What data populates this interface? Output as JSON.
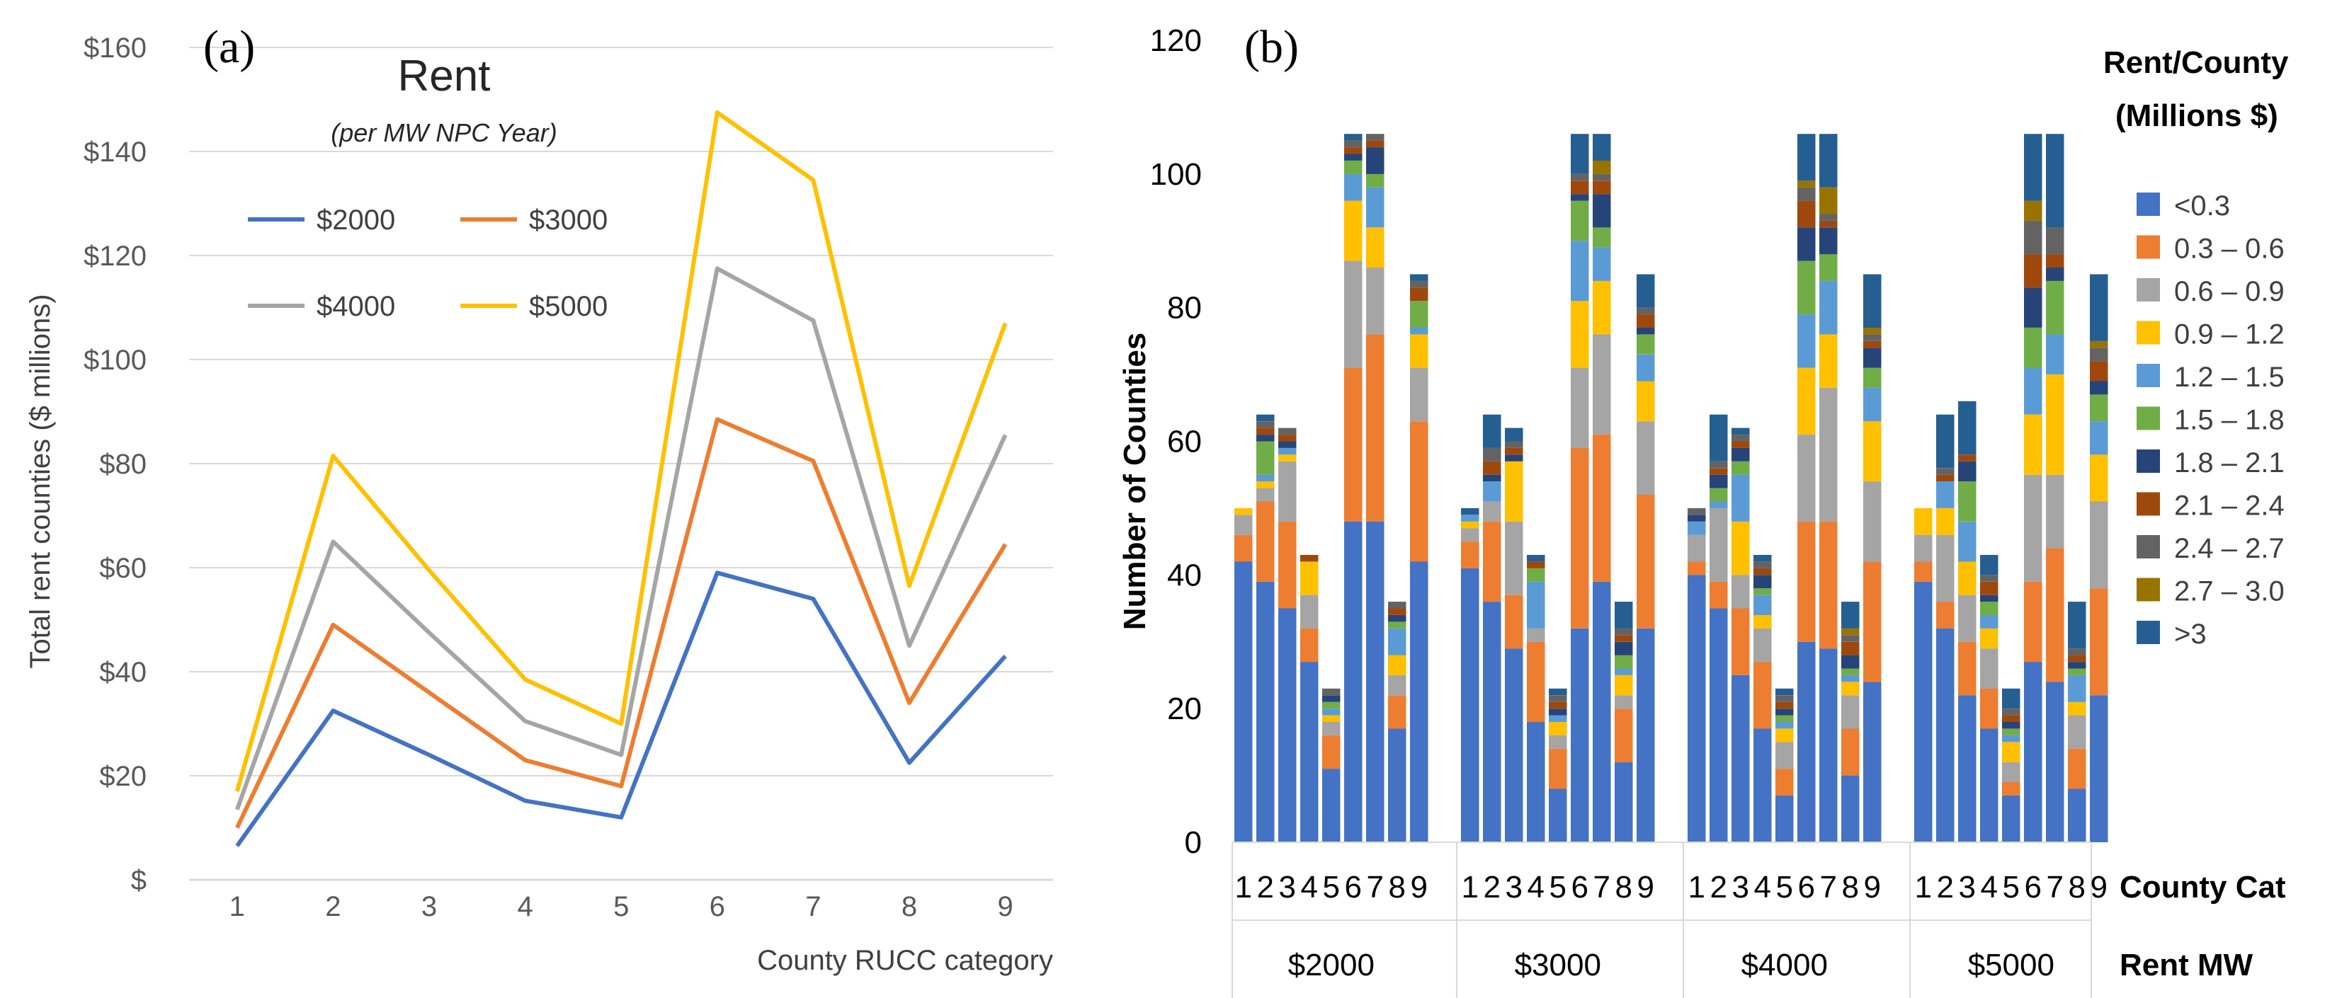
{
  "chart_data": [
    {
      "type": "line",
      "panel_label": "(a)",
      "title": "Rent",
      "subtitle": "(per MW NPC Year)",
      "xlabel": "County RUCC category",
      "ylabel": "Total rent counties ($ millions)",
      "x": [
        1,
        2,
        3,
        4,
        5,
        6,
        7,
        8,
        9
      ],
      "ylim": [
        0,
        160
      ],
      "yticks": [
        0,
        20,
        40,
        60,
        80,
        100,
        120,
        140,
        160
      ],
      "ytick_labels": [
        "$",
        "$20",
        "$40",
        "$60",
        "$80",
        "$100",
        "$120",
        "$140",
        "$160"
      ],
      "grid": true,
      "legend_position": "top-left, inside",
      "series": [
        {
          "name": "$2000",
          "color": "#4472C4",
          "values": [
            6.5,
            32.5,
            24,
            15.2,
            12,
            59,
            54,
            22.5,
            43
          ]
        },
        {
          "name": "$3000",
          "color": "#ED7D31",
          "values": [
            10,
            49,
            36,
            23,
            18,
            88.5,
            80.5,
            34,
            64.5
          ]
        },
        {
          "name": "$4000",
          "color": "#A5A5A5",
          "values": [
            13.5,
            65,
            47.5,
            30.5,
            24,
            117.5,
            107.5,
            45,
            85.5
          ]
        },
        {
          "name": "$5000",
          "color": "#FFC000",
          "values": [
            17,
            81.5,
            59.5,
            38.5,
            30,
            147.5,
            134.5,
            56.5,
            107
          ]
        }
      ]
    },
    {
      "type": "bar",
      "stacked": true,
      "panel_label": "(b)",
      "ylabel": "Number of Counties",
      "ylim": [
        0,
        120
      ],
      "yticks": [
        0,
        20,
        40,
        60,
        80,
        100,
        120
      ],
      "grid": false,
      "legend_title_line1": "Rent/County",
      "legend_title_line2": "(Millions $)",
      "legend_position": "right",
      "x_row1_name": "County Cat",
      "x_row2_name": "Rent MW",
      "categories": [
        "1",
        "2",
        "3",
        "4",
        "5",
        "6",
        "7",
        "8",
        "9"
      ],
      "legend_items": [
        {
          "label": "<0.3",
          "color": "#4472C4"
        },
        {
          "label": "0.3 – 0.6",
          "color": "#ED7D31"
        },
        {
          "label": "0.6 – 0.9",
          "color": "#A5A5A5"
        },
        {
          "label": "0.9 – 1.2",
          "color": "#FFC000"
        },
        {
          "label": "1.2 – 1.5",
          "color": "#5B9BD5"
        },
        {
          "label": "1.5 – 1.8",
          "color": "#70AD47"
        },
        {
          "label": "1.8 – 2.1",
          "color": "#264478"
        },
        {
          "label": "2.1 – 2.4",
          "color": "#9E480E"
        },
        {
          "label": "2.4 – 2.7",
          "color": "#636363"
        },
        {
          "label": "2.7 – 3.0",
          "color": "#997300"
        },
        {
          "label": ">3",
          "color": "#255E91"
        }
      ],
      "groups": [
        {
          "name": "$2000",
          "bars": [
            [
              42,
              4,
              3,
              1,
              0,
              0,
              0,
              0,
              0,
              0,
              0
            ],
            [
              39,
              12,
              2,
              1,
              1,
              5,
              1,
              1,
              1,
              0,
              1
            ],
            [
              35,
              13,
              9,
              1,
              1,
              0,
              1,
              1,
              1,
              0,
              0
            ],
            [
              27,
              5,
              5,
              5,
              0,
              0,
              0,
              1,
              0,
              0,
              0
            ],
            [
              11,
              5,
              2,
              1,
              1,
              1,
              1,
              0,
              1,
              0,
              0
            ],
            [
              48,
              23,
              16,
              9,
              4,
              2,
              1,
              1,
              1,
              0,
              1
            ],
            [
              48,
              28,
              10,
              6,
              6,
              2,
              4,
              1,
              1,
              0,
              0
            ],
            [
              17,
              5,
              3,
              3,
              4,
              1,
              1,
              1,
              1,
              0,
              0
            ],
            [
              42,
              21,
              8,
              5,
              1,
              4,
              0,
              2,
              1,
              0,
              1
            ]
          ]
        },
        {
          "name": "$3000",
          "bars": [
            [
              41,
              4,
              2,
              1,
              1,
              0,
              0,
              0,
              0,
              0,
              1
            ],
            [
              36,
              12,
              3,
              0,
              3,
              0,
              1,
              2,
              2,
              0,
              5
            ],
            [
              29,
              8,
              11,
              9,
              0,
              0,
              1,
              1,
              1,
              0,
              2
            ],
            [
              18,
              12,
              2,
              0,
              7,
              2,
              0,
              1,
              0,
              0,
              1
            ],
            [
              8,
              6,
              2,
              2,
              1,
              0,
              1,
              1,
              1,
              0,
              1
            ],
            [
              32,
              27,
              12,
              10,
              9,
              6,
              1,
              2,
              1,
              0,
              6
            ],
            [
              39,
              22,
              15,
              8,
              5,
              3,
              5,
              2,
              1,
              2,
              4
            ],
            [
              12,
              8,
              2,
              3,
              1,
              2,
              2,
              1,
              1,
              0,
              4
            ],
            [
              32,
              20,
              11,
              6,
              4,
              3,
              1,
              2,
              1,
              0,
              5
            ]
          ]
        },
        {
          "name": "$4000",
          "bars": [
            [
              40,
              2,
              4,
              0,
              2,
              0,
              1,
              0,
              1,
              0,
              0
            ],
            [
              35,
              4,
              11,
              0,
              1,
              2,
              2,
              1,
              1,
              0,
              7
            ],
            [
              25,
              10,
              5,
              8,
              7,
              2,
              2,
              1,
              1,
              0,
              1
            ],
            [
              17,
              10,
              5,
              2,
              3,
              1,
              2,
              1,
              1,
              0,
              1
            ],
            [
              7,
              4,
              4,
              2,
              1,
              1,
              1,
              1,
              1,
              0,
              1
            ],
            [
              30,
              18,
              13,
              10,
              8,
              8,
              5,
              4,
              2,
              1,
              7
            ],
            [
              29,
              19,
              20,
              8,
              8,
              4,
              4,
              1,
              1,
              4,
              8
            ],
            [
              10,
              7,
              5,
              2,
              1,
              1,
              2,
              2,
              1,
              1,
              4
            ],
            [
              24,
              18,
              12,
              9,
              5,
              3,
              3,
              1,
              1,
              1,
              8
            ]
          ]
        },
        {
          "name": "$5000",
          "bars": [
            [
              39,
              3,
              4,
              4,
              0,
              0,
              0,
              0,
              0,
              0,
              0
            ],
            [
              32,
              4,
              10,
              4,
              4,
              0,
              0,
              1,
              1,
              0,
              8
            ],
            [
              22,
              8,
              7,
              5,
              6,
              6,
              3,
              1,
              0,
              0,
              8
            ],
            [
              17,
              6,
              6,
              3,
              2,
              2,
              1,
              2,
              1,
              0,
              3
            ],
            [
              7,
              2,
              3,
              3,
              1,
              1,
              1,
              1,
              1,
              0,
              3
            ],
            [
              27,
              12,
              16,
              9,
              7,
              6,
              6,
              5,
              5,
              3,
              10
            ],
            [
              24,
              20,
              11,
              15,
              6,
              8,
              2,
              2,
              4,
              0,
              14
            ],
            [
              8,
              6,
              5,
              2,
              4,
              1,
              1,
              1,
              1,
              0,
              7
            ],
            [
              22,
              16,
              13,
              7,
              5,
              4,
              2,
              3,
              2,
              1,
              10
            ]
          ]
        }
      ]
    }
  ]
}
